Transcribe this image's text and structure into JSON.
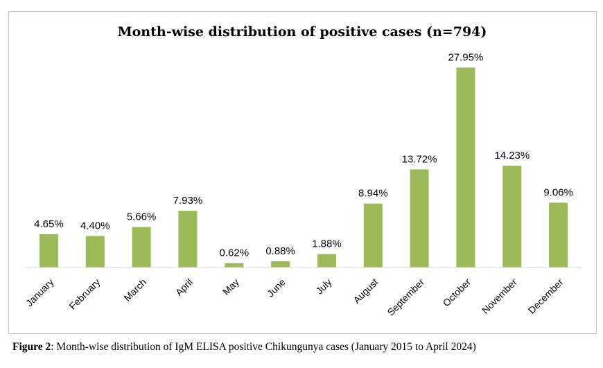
{
  "chart_data": {
    "type": "bar",
    "title": "Month-wise distribution of positive cases (n=794)",
    "categories": [
      "January",
      "February",
      "March",
      "April",
      "May",
      "June",
      "July",
      "August",
      "September",
      "October",
      "November",
      "December"
    ],
    "values": [
      4.65,
      4.4,
      5.66,
      7.93,
      0.62,
      0.88,
      1.88,
      8.94,
      13.72,
      27.95,
      14.23,
      9.06
    ],
    "data_labels": [
      "4.65%",
      "4.40%",
      "5.66%",
      "7.93%",
      "0.62%",
      "0.88%",
      "1.88%",
      "8.94%",
      "13.72%",
      "27.95%",
      "14.23%",
      "9.06%"
    ],
    "bar_color": "#9bbb59",
    "xlabel": "",
    "ylabel": "",
    "ylim": [
      0,
      28
    ],
    "grid": false,
    "legend": "none"
  },
  "caption": {
    "label": "Figure 2",
    "text": ": Month-wise distribution of IgM ELISA positive Chikungunya cases (January 2015 to April 2024)"
  }
}
